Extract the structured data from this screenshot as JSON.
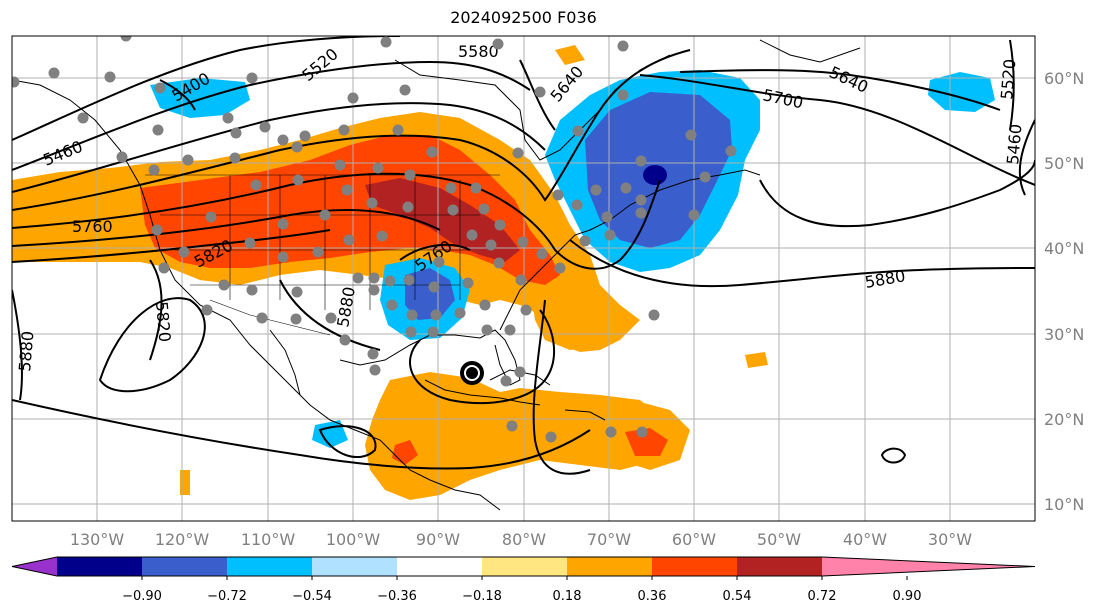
{
  "title": "2024092500 F036",
  "map": {
    "lon_range": [
      -140,
      -20
    ],
    "lat_range": [
      8,
      65
    ],
    "lon_labels": [
      "130°W",
      "120°W",
      "110°W",
      "100°W",
      "90°W",
      "80°W",
      "70°W",
      "60°W",
      "50°W",
      "40°W",
      "30°W"
    ],
    "lat_labels": [
      "60°N",
      "50°N",
      "40°N",
      "30°N",
      "20°N",
      "10°N"
    ],
    "contour_labels": [
      "5400",
      "5460",
      "5520",
      "5580",
      "5640",
      "5700",
      "5640",
      "5520",
      "5460",
      "5760",
      "5820",
      "5760",
      "5880",
      "5820",
      "5880",
      "5880"
    ],
    "observation_marker_color": "#808080",
    "storm_marker": "filled-circle",
    "grid": true
  },
  "colorbar": {
    "tick_labels": [
      "−0.90",
      "−0.72",
      "−0.54",
      "−0.36",
      "−0.18",
      "0.18",
      "0.36",
      "0.54",
      "0.72",
      "0.90"
    ],
    "colors": [
      "#9932cc",
      "#00008b",
      "#3a5fcd",
      "#00bfff",
      "#b0e2ff",
      "#ffffff",
      "#ffe680",
      "#ffa500",
      "#ff4500",
      "#b22222",
      "#ff82ab"
    ],
    "extend": "both"
  }
}
